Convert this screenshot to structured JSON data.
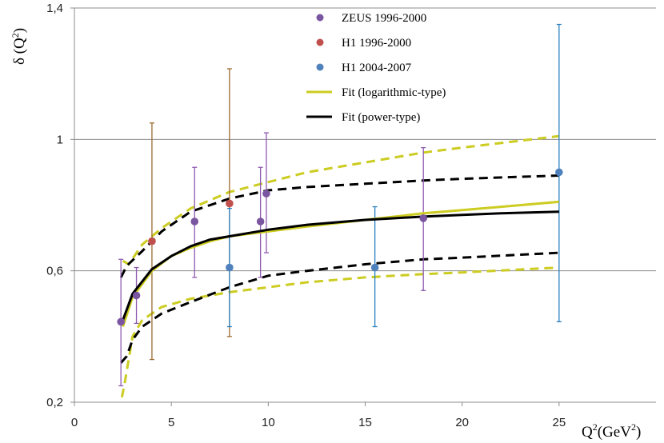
{
  "chart_data": {
    "type": "scatter",
    "xlabel": "Q",
    "xlabel_sup": "2",
    "xlabel_unit": "(GeV",
    "xlabel_unit_sup": "2",
    "xlabel_close": ")",
    "ylabel": "δ (Q",
    "ylabel_sup": "2",
    "ylabel_close": ")",
    "xlim": [
      0,
      30
    ],
    "ylim": [
      0.2,
      1.4
    ],
    "x_ticks": [
      0,
      5,
      10,
      15,
      20,
      25
    ],
    "x_tick_labels": [
      "0",
      "5",
      "10",
      "15",
      "20",
      "25"
    ],
    "y_ticks": [
      0.2,
      0.6,
      1.0,
      1.4
    ],
    "y_tick_labels": [
      "0,2",
      "0,6",
      "1",
      "1,4"
    ],
    "grid": "horizontal",
    "legend_position": "top-center",
    "colors": {
      "zeus": "#7a55a0",
      "zeus_err": "#8e5ab0",
      "h1_old": "#c0504d",
      "h1_old_err": "#9c6a30",
      "h1_new": "#4f81bd",
      "h1_new_err": "#2980c0",
      "fit_log": "#cccc22",
      "fit_pow": "#000000",
      "grid": "#8c8c8c"
    },
    "series": [
      {
        "name": "ZEUS 1996-2000",
        "kind": "points",
        "color": "#7a55a0",
        "err_color": "#8e5ab0",
        "points": [
          {
            "x": 2.4,
            "y": 0.445,
            "ylo": 0.25,
            "yhi": 0.635
          },
          {
            "x": 3.2,
            "y": 0.525,
            "ylo": 0.44,
            "yhi": 0.61
          },
          {
            "x": 6.2,
            "y": 0.75,
            "ylo": 0.58,
            "yhi": 0.915
          },
          {
            "x": 9.6,
            "y": 0.75,
            "ylo": 0.58,
            "yhi": 0.915
          },
          {
            "x": 9.9,
            "y": 0.835,
            "ylo": 0.655,
            "yhi": 1.02
          },
          {
            "x": 18.0,
            "y": 0.76,
            "ylo": 0.54,
            "yhi": 0.975
          }
        ]
      },
      {
        "name": "H1 1996-2000",
        "kind": "points",
        "color": "#c0504d",
        "err_color": "#9c6a30",
        "points": [
          {
            "x": 4.0,
            "y": 0.69,
            "ylo": 0.33,
            "yhi": 1.05
          },
          {
            "x": 8.0,
            "y": 0.805,
            "ylo": 0.4,
            "yhi": 1.215
          }
        ]
      },
      {
        "name": "H1 2004-2007",
        "kind": "points",
        "color": "#4f81bd",
        "err_color": "#2980c0",
        "points": [
          {
            "x": 8.0,
            "y": 0.61,
            "ylo": 0.43,
            "yhi": 0.79
          },
          {
            "x": 15.5,
            "y": 0.61,
            "ylo": 0.43,
            "yhi": 0.795
          },
          {
            "x": 25.0,
            "y": 0.9,
            "ylo": 0.445,
            "yhi": 1.35
          }
        ]
      },
      {
        "name": "Fit (logarithmic-type)",
        "kind": "line",
        "color": "#cccc22",
        "x": [
          2.5,
          3,
          4,
          5,
          6,
          7,
          8,
          10,
          12,
          15,
          18,
          20,
          22,
          25
        ],
        "y": [
          0.43,
          0.52,
          0.6,
          0.645,
          0.67,
          0.69,
          0.705,
          0.72,
          0.735,
          0.755,
          0.775,
          0.785,
          0.795,
          0.81
        ]
      },
      {
        "name": "Fit (power-type)",
        "kind": "line",
        "color": "#000000",
        "x": [
          2.5,
          3,
          4,
          5,
          6,
          7,
          8,
          10,
          12,
          15,
          18,
          20,
          22,
          25
        ],
        "y": [
          0.45,
          0.53,
          0.605,
          0.645,
          0.675,
          0.695,
          0.705,
          0.725,
          0.74,
          0.755,
          0.765,
          0.77,
          0.775,
          0.78
        ]
      },
      {
        "name": "Fit (logarithmic-type) upper band",
        "kind": "band",
        "color": "#cccc22",
        "x": [
          2.5,
          2.8,
          3.5,
          4.5,
          6,
          8,
          10,
          12,
          15,
          18,
          20,
          25
        ],
        "y": [
          0.63,
          0.62,
          0.68,
          0.73,
          0.79,
          0.84,
          0.87,
          0.9,
          0.93,
          0.96,
          0.975,
          1.01
        ]
      },
      {
        "name": "Fit (logarithmic-type) lower band",
        "kind": "band",
        "color": "#cccc22",
        "x": [
          2.45,
          2.6,
          3,
          3.5,
          4.5,
          6,
          8,
          10,
          12,
          15,
          18,
          20,
          25
        ],
        "y": [
          0.215,
          0.26,
          0.4,
          0.45,
          0.49,
          0.515,
          0.535,
          0.55,
          0.565,
          0.58,
          0.59,
          0.595,
          0.61
        ]
      },
      {
        "name": "Fit (power-type) upper band",
        "kind": "band",
        "color": "#000000",
        "x": [
          2.4,
          2.7,
          3.5,
          4.5,
          6,
          8,
          10,
          12,
          15,
          18,
          20,
          25
        ],
        "y": [
          0.58,
          0.615,
          0.66,
          0.72,
          0.78,
          0.82,
          0.845,
          0.855,
          0.865,
          0.875,
          0.88,
          0.89
        ]
      },
      {
        "name": "Fit (power-type) lower band",
        "kind": "band",
        "color": "#000000",
        "x": [
          2.4,
          2.7,
          3,
          3.5,
          4.5,
          6,
          8,
          10,
          12,
          15,
          18,
          20,
          25
        ],
        "y": [
          0.32,
          0.34,
          0.39,
          0.43,
          0.47,
          0.505,
          0.55,
          0.585,
          0.6,
          0.62,
          0.635,
          0.64,
          0.655
        ]
      }
    ],
    "legend": [
      {
        "label": "ZEUS 1996-2000",
        "marker": "dot",
        "color": "#7a55a0"
      },
      {
        "label": "H1 1996-2000",
        "marker": "dot",
        "color": "#c0504d"
      },
      {
        "label": "H1 2004-2007",
        "marker": "dot",
        "color": "#4f81bd"
      },
      {
        "label": "Fit (logarithmic-type)",
        "marker": "line",
        "color": "#cccc22"
      },
      {
        "label": "Fit (power-type)",
        "marker": "line",
        "color": "#000000"
      }
    ]
  }
}
